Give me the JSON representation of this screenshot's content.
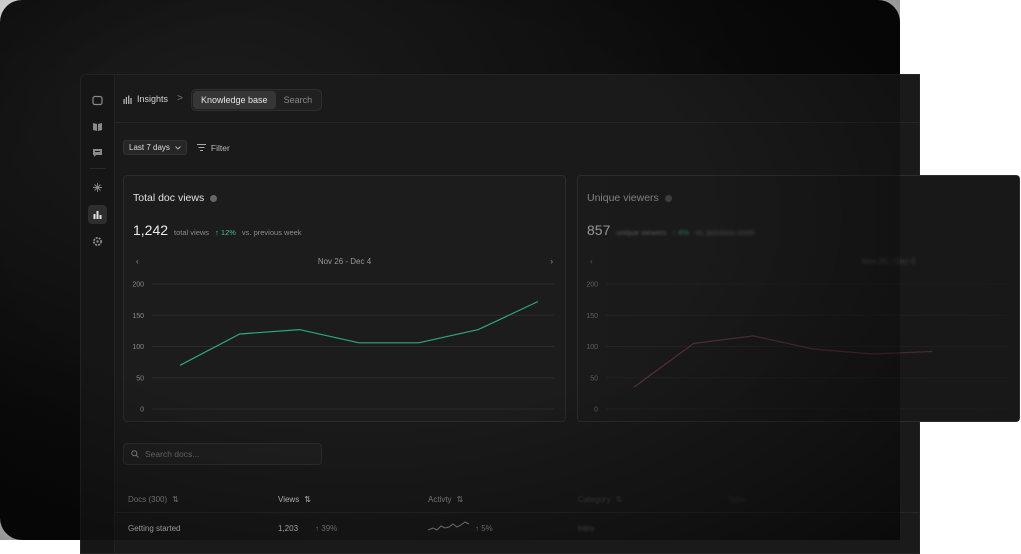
{
  "nav": {
    "items": [
      {
        "name": "inbox-icon"
      },
      {
        "name": "book-icon"
      },
      {
        "name": "chat-icon"
      },
      {
        "name": "sparkle-icon"
      },
      {
        "name": "analytics-icon",
        "active": true
      },
      {
        "name": "gear-icon"
      }
    ]
  },
  "header": {
    "breadcrumb": "Insights",
    "separator": ">",
    "tabs": [
      {
        "label": "Knowledge base",
        "active": true
      },
      {
        "label": "Search",
        "active": false
      }
    ]
  },
  "toolbar": {
    "range_label": "Last 7 days",
    "filter_label": "Filter"
  },
  "cards": [
    {
      "title": "Total doc views",
      "value": "1,242",
      "value_caption": "total views",
      "delta": "12%",
      "delta_caption": "vs. previous week",
      "range": "Nov 26 - Dec 4",
      "prev": "‹",
      "next": "›",
      "line_color": "#2fa877"
    },
    {
      "title": "Unique viewers",
      "value": "857",
      "value_caption": "unique viewers",
      "delta": "8%",
      "delta_caption": "vs. previous week",
      "range": "Nov 26 - Dec 4",
      "prev": "‹",
      "next": "›",
      "line_color": "#8a3f6e"
    }
  ],
  "chart_data": [
    {
      "type": "line",
      "title": "Total doc views",
      "ylim": [
        0,
        200
      ],
      "yticks": [
        "200",
        "150",
        "100",
        "50",
        "0"
      ],
      "grid": true,
      "series": [
        {
          "values": [
            70,
            120,
            127,
            106,
            106,
            127,
            172
          ]
        }
      ]
    },
    {
      "type": "line",
      "title": "Unique viewers",
      "ylim": [
        0,
        200
      ],
      "yticks": [
        "200",
        "150",
        "100",
        "50",
        "0"
      ],
      "grid": true,
      "series": [
        {
          "values": [
            35,
            105,
            117,
            96,
            88,
            92
          ]
        }
      ]
    }
  ],
  "search": {
    "placeholder": "Search docs..."
  },
  "table": {
    "columns": [
      "Docs (300)",
      "Views",
      "Activty",
      "Category",
      "Type"
    ],
    "rows": [
      {
        "doc": "Getting started",
        "views": "1,203",
        "views_delta": "39%",
        "activity_delta": "5%",
        "category": "Intro"
      }
    ]
  },
  "colors": {
    "accent_green": "#43c08a",
    "background": "#1a1a1a"
  }
}
